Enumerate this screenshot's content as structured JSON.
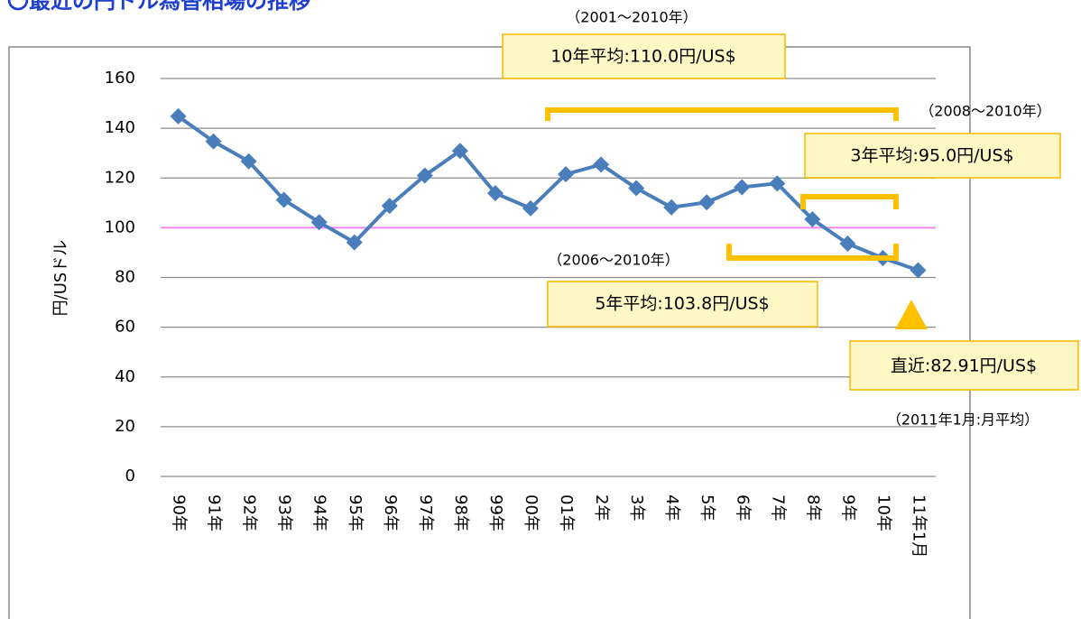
{
  "chart_data": {
    "type": "line",
    "title": "〇最近の円ドル為替相場の推移",
    "y_label": "円/USドル",
    "categories": [
      "90年",
      "91年",
      "92年",
      "93年",
      "94年",
      "95年",
      "96年",
      "97年",
      "98年",
      "99年",
      "00年",
      "01年",
      "2年",
      "3年",
      "4年",
      "5年",
      "6年",
      "7年",
      "8年",
      "9年",
      "10年",
      "11年1月"
    ],
    "series": [
      {
        "name": "円/USドル",
        "color": "#4a7ebb",
        "values": [
          144.8,
          134.7,
          126.7,
          111.2,
          102.2,
          94.1,
          108.8,
          121.0,
          130.9,
          113.9,
          107.8,
          121.5,
          125.4,
          115.9,
          108.2,
          110.2,
          116.3,
          117.8,
          103.4,
          93.6,
          87.8,
          82.91
        ]
      }
    ],
    "ylim": [
      0,
      160
    ],
    "yticks": [
      0,
      20,
      40,
      60,
      80,
      100,
      120,
      140,
      160
    ],
    "grid": true,
    "reference_line": {
      "value": 100,
      "color": "#ee88ee"
    },
    "annotations": {
      "ten_year_period": "（2001～2010年）",
      "ten_year_average": "10年平均:110.0円/US$",
      "three_year_period": "（2008～2010年）",
      "three_year_average": "3年平均:95.0円/US$",
      "five_year_period": "（2006～2010年）",
      "five_year_average": "5年平均:103.8円/US$",
      "latest": "直近:82.91円/US$",
      "latest_period": "（2011年1月:月平均）"
    }
  }
}
